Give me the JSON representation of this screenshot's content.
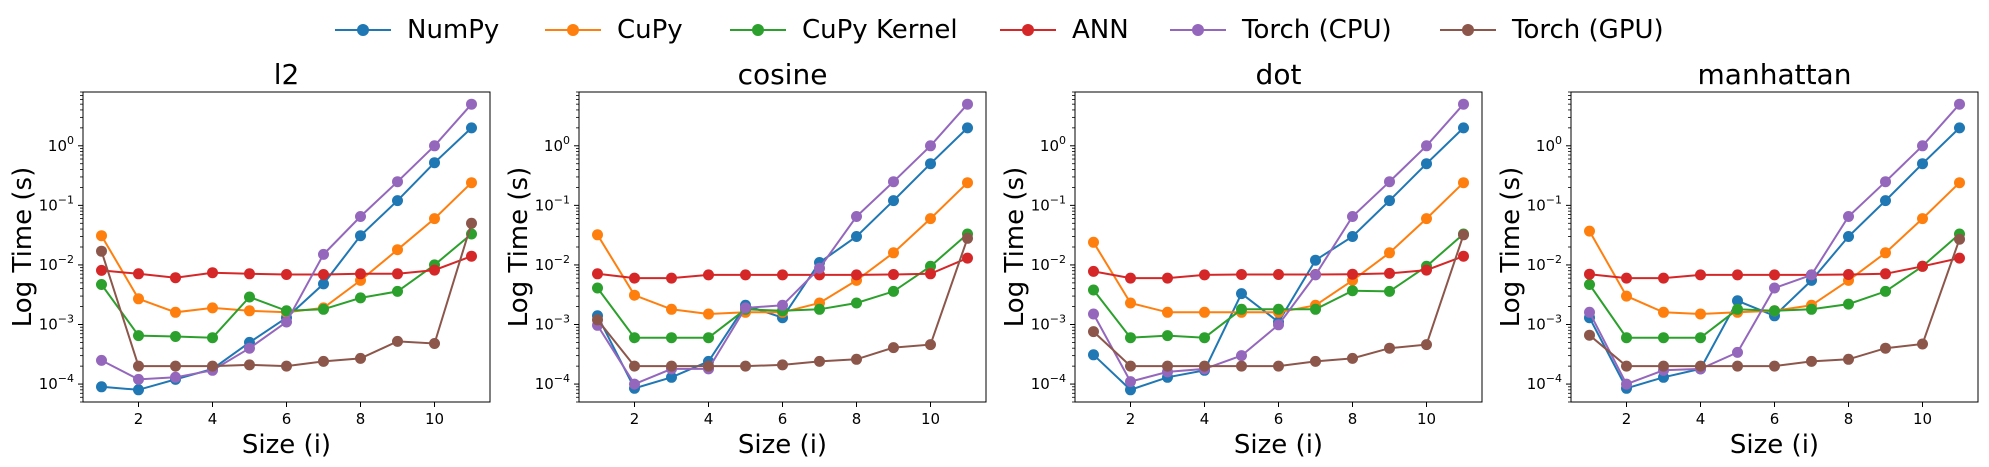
{
  "legend": [
    {
      "name": "NumPy",
      "color": "#1f77b4"
    },
    {
      "name": "CuPy",
      "color": "#ff7f0e"
    },
    {
      "name": "CuPy Kernel",
      "color": "#2ca02c"
    },
    {
      "name": "ANN",
      "color": "#d62728"
    },
    {
      "name": "Torch (CPU)",
      "color": "#9467bd"
    },
    {
      "name": "Torch (GPU)",
      "color": "#8c564b"
    }
  ],
  "chart_data": [
    {
      "type": "line",
      "title": "l2",
      "xlabel": "Size (i)",
      "ylabel": "Log Time (s)",
      "yscale": "log",
      "xlim": [
        0.5,
        11.5
      ],
      "ylim": [
        5e-05,
        8
      ],
      "xticks": [
        2,
        4,
        6,
        8,
        10
      ],
      "yticks": [
        "10^-4",
        "10^-3",
        "10^-2",
        "10^-1",
        "10^0"
      ],
      "grid": false,
      "x": [
        1,
        2,
        3,
        4,
        5,
        6,
        7,
        8,
        9,
        10,
        11
      ],
      "series": [
        {
          "name": "NumPy",
          "values": [
            9e-05,
            8e-05,
            0.00012,
            0.00018,
            0.0005,
            0.0013,
            0.0048,
            0.031,
            0.12,
            0.52,
            2.0
          ]
        },
        {
          "name": "CuPy",
          "values": [
            0.031,
            0.0027,
            0.0016,
            0.0019,
            0.0017,
            0.0016,
            0.0019,
            0.0055,
            0.018,
            0.06,
            0.24
          ]
        },
        {
          "name": "CuPy Kernel",
          "values": [
            0.0047,
            0.00065,
            0.00063,
            0.0006,
            0.0029,
            0.0017,
            0.0018,
            0.0028,
            0.0036,
            0.01,
            0.033
          ]
        },
        {
          "name": "ANN",
          "values": [
            0.0081,
            0.0071,
            0.0061,
            0.0074,
            0.0071,
            0.0069,
            0.0069,
            0.0071,
            0.0071,
            0.0082,
            0.014
          ]
        },
        {
          "name": "Torch (CPU)",
          "values": [
            0.00025,
            0.00012,
            0.00013,
            0.00017,
            0.0004,
            0.0011,
            0.015,
            0.065,
            0.25,
            1.0,
            5.0
          ]
        },
        {
          "name": "Torch (GPU)",
          "values": [
            0.017,
            0.0002,
            0.0002,
            0.0002,
            0.00021,
            0.0002,
            0.00024,
            0.00027,
            0.00052,
            0.00048,
            0.05
          ]
        }
      ]
    },
    {
      "type": "line",
      "title": "cosine",
      "xlabel": "Size (i)",
      "ylabel": "Log Time (s)",
      "yscale": "log",
      "xlim": [
        0.5,
        11.5
      ],
      "ylim": [
        5e-05,
        8
      ],
      "xticks": [
        2,
        4,
        6,
        8,
        10
      ],
      "yticks": [
        "10^-4",
        "10^-3",
        "10^-2",
        "10^-1",
        "10^0"
      ],
      "grid": false,
      "x": [
        1,
        2,
        3,
        4,
        5,
        6,
        7,
        8,
        9,
        10,
        11
      ],
      "series": [
        {
          "name": "NumPy",
          "values": [
            0.0014,
            8.5e-05,
            0.00013,
            0.00024,
            0.0021,
            0.0013,
            0.011,
            0.03,
            0.12,
            0.5,
            2.0
          ]
        },
        {
          "name": "CuPy",
          "values": [
            0.032,
            0.0031,
            0.0018,
            0.0015,
            0.0016,
            0.0016,
            0.0023,
            0.0055,
            0.016,
            0.06,
            0.24
          ]
        },
        {
          "name": "CuPy Kernel",
          "values": [
            0.0041,
            0.0006,
            0.0006,
            0.0006,
            0.0018,
            0.0017,
            0.0018,
            0.0023,
            0.0036,
            0.0095,
            0.033
          ]
        },
        {
          "name": "ANN",
          "values": [
            0.0071,
            0.006,
            0.006,
            0.0068,
            0.0068,
            0.0068,
            0.0068,
            0.0068,
            0.0069,
            0.0071,
            0.013
          ]
        },
        {
          "name": "Torch (CPU)",
          "values": [
            0.00097,
            0.0001,
            0.00018,
            0.00018,
            0.0019,
            0.0021,
            0.0088,
            0.065,
            0.25,
            1.0,
            5.0
          ]
        },
        {
          "name": "Torch (GPU)",
          "values": [
            0.0012,
            0.0002,
            0.0002,
            0.0002,
            0.0002,
            0.00021,
            0.00024,
            0.00026,
            0.00041,
            0.00046,
            0.028
          ]
        }
      ]
    },
    {
      "type": "line",
      "title": "dot",
      "xlabel": "Size (i)",
      "ylabel": "Log Time (s)",
      "yscale": "log",
      "xlim": [
        0.5,
        11.5
      ],
      "ylim": [
        5e-05,
        8
      ],
      "xticks": [
        2,
        4,
        6,
        8,
        10
      ],
      "yticks": [
        "10^-4",
        "10^-3",
        "10^-2",
        "10^-1",
        "10^0"
      ],
      "grid": false,
      "x": [
        1,
        2,
        3,
        4,
        5,
        6,
        7,
        8,
        9,
        10,
        11
      ],
      "series": [
        {
          "name": "NumPy",
          "values": [
            0.00031,
            8e-05,
            0.00013,
            0.00017,
            0.0033,
            0.0011,
            0.012,
            0.03,
            0.12,
            0.5,
            2.0
          ]
        },
        {
          "name": "CuPy",
          "values": [
            0.024,
            0.0023,
            0.0016,
            0.0016,
            0.0016,
            0.0016,
            0.0021,
            0.0055,
            0.016,
            0.06,
            0.24
          ]
        },
        {
          "name": "CuPy Kernel",
          "values": [
            0.0038,
            0.0006,
            0.00065,
            0.0006,
            0.0018,
            0.0018,
            0.0018,
            0.0037,
            0.0036,
            0.0095,
            0.033
          ]
        },
        {
          "name": "ANN",
          "values": [
            0.0078,
            0.006,
            0.006,
            0.0068,
            0.0069,
            0.0069,
            0.0069,
            0.007,
            0.0072,
            0.0082,
            0.014
          ]
        },
        {
          "name": "Torch (CPU)",
          "values": [
            0.0015,
            0.00011,
            0.00016,
            0.00018,
            0.0003,
            0.00099,
            0.0068,
            0.065,
            0.25,
            1.0,
            5.0
          ]
        },
        {
          "name": "Torch (GPU)",
          "values": [
            0.00076,
            0.0002,
            0.0002,
            0.0002,
            0.0002,
            0.0002,
            0.00024,
            0.00027,
            0.0004,
            0.00046,
            0.032
          ]
        }
      ]
    },
    {
      "type": "line",
      "title": "manhattan",
      "xlabel": "Size (i)",
      "ylabel": "Log Time (s)",
      "yscale": "log",
      "xlim": [
        0.5,
        11.5
      ],
      "ylim": [
        5e-05,
        8
      ],
      "xticks": [
        2,
        4,
        6,
        8,
        10
      ],
      "yticks": [
        "10^-4",
        "10^-3",
        "10^-2",
        "10^-1",
        "10^0"
      ],
      "grid": false,
      "x": [
        1,
        2,
        3,
        4,
        5,
        6,
        7,
        8,
        9,
        10,
        11
      ],
      "series": [
        {
          "name": "NumPy",
          "values": [
            0.0013,
            8.5e-05,
            0.00013,
            0.00018,
            0.0025,
            0.0014,
            0.0055,
            0.03,
            0.12,
            0.5,
            2.0
          ]
        },
        {
          "name": "CuPy",
          "values": [
            0.037,
            0.003,
            0.0016,
            0.0015,
            0.0016,
            0.0017,
            0.0021,
            0.0055,
            0.016,
            0.06,
            0.24
          ]
        },
        {
          "name": "CuPy Kernel",
          "values": [
            0.0047,
            0.0006,
            0.0006,
            0.0006,
            0.0018,
            0.0017,
            0.0018,
            0.0022,
            0.0036,
            0.0095,
            0.033
          ]
        },
        {
          "name": "ANN",
          "values": [
            0.007,
            0.006,
            0.006,
            0.0068,
            0.0068,
            0.0068,
            0.0068,
            0.0069,
            0.0071,
            0.0095,
            0.013
          ]
        },
        {
          "name": "Torch (CPU)",
          "values": [
            0.0016,
            0.0001,
            0.00017,
            0.00018,
            0.00034,
            0.0041,
            0.0068,
            0.065,
            0.25,
            1.0,
            5.0
          ]
        },
        {
          "name": "Torch (GPU)",
          "values": [
            0.00066,
            0.0002,
            0.0002,
            0.0002,
            0.0002,
            0.0002,
            0.00024,
            0.00026,
            0.0004,
            0.00047,
            0.027
          ]
        }
      ]
    }
  ]
}
